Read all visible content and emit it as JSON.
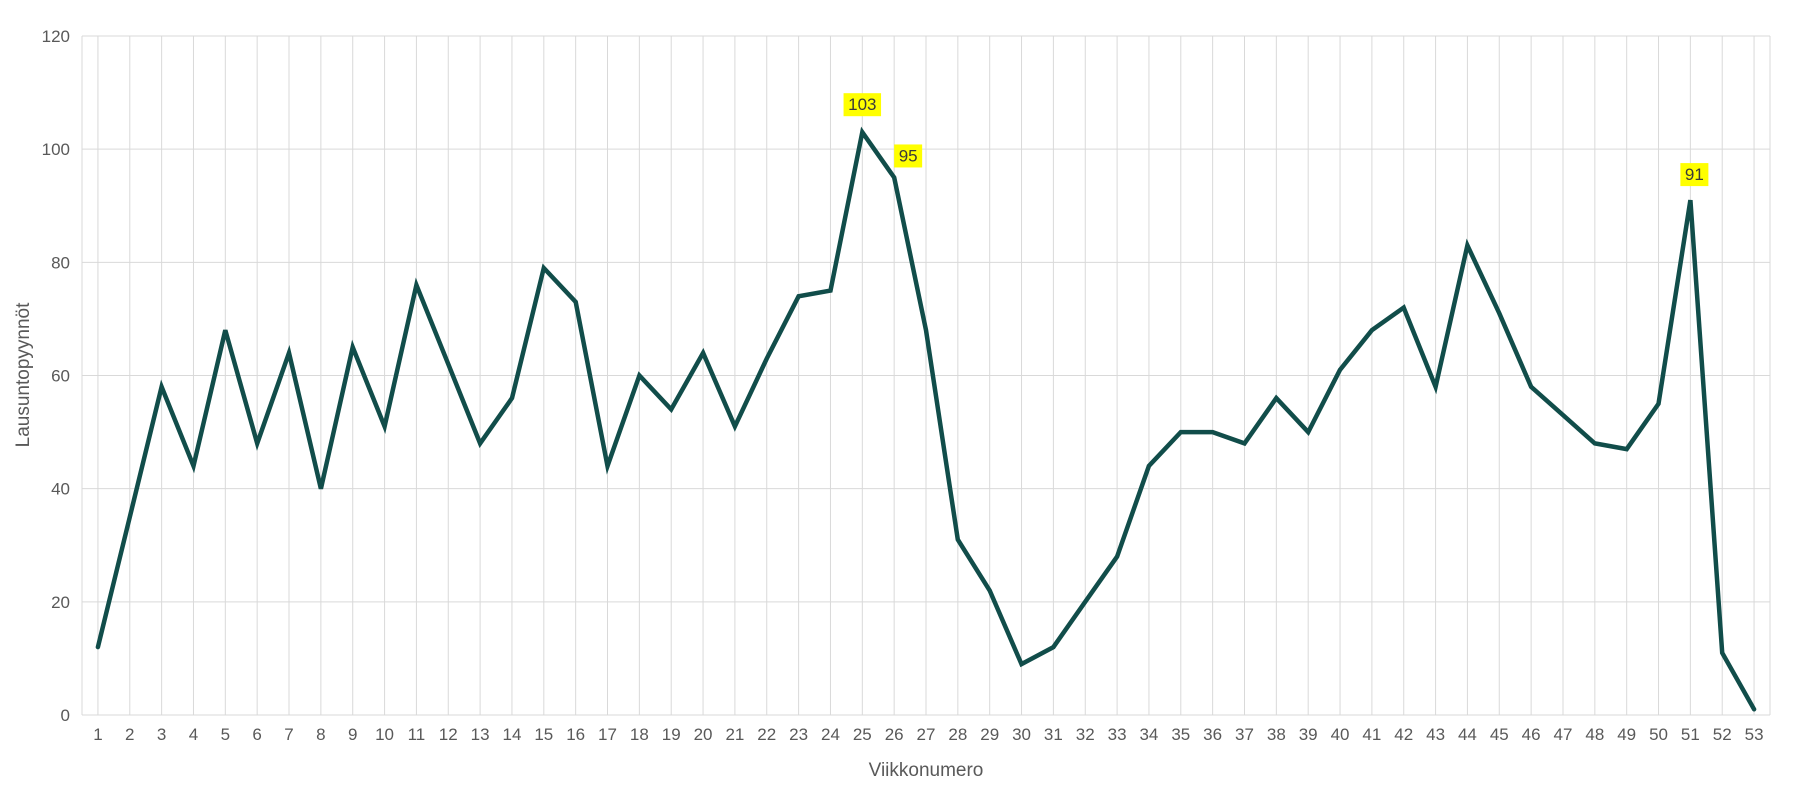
{
  "chart": {
    "y_axis_title": "Lausuntopyynnöt",
    "x_axis_title": "Viikkonumero",
    "colors": {
      "line": "#114d4a",
      "grid": "#d9d9d9",
      "tick_text": "#595959",
      "label_bg": "#ffff00",
      "label_text": "#3a3a3a"
    }
  },
  "chart_data": {
    "type": "line",
    "title": "",
    "xlabel": "Viikkonumero",
    "ylabel": "Lausuntopyynnöt",
    "x": [
      1,
      2,
      3,
      4,
      5,
      6,
      7,
      8,
      9,
      10,
      11,
      12,
      13,
      14,
      15,
      16,
      17,
      18,
      19,
      20,
      21,
      22,
      23,
      24,
      25,
      26,
      27,
      28,
      29,
      30,
      31,
      32,
      33,
      34,
      35,
      36,
      37,
      38,
      39,
      40,
      41,
      42,
      43,
      44,
      45,
      46,
      47,
      48,
      49,
      50,
      51,
      52,
      53
    ],
    "values": [
      12,
      35,
      58,
      44,
      68,
      48,
      64,
      40,
      65,
      51,
      76,
      62,
      48,
      56,
      79,
      73,
      44,
      60,
      54,
      64,
      51,
      63,
      74,
      75,
      103,
      95,
      68,
      31,
      22,
      9,
      12,
      20,
      28,
      44,
      50,
      50,
      48,
      56,
      50,
      61,
      68,
      72,
      58,
      83,
      71,
      58,
      53,
      48,
      47,
      55,
      91,
      11,
      1
    ],
    "y_ticks": [
      0,
      20,
      40,
      60,
      80,
      100,
      120
    ],
    "ylim": [
      0,
      120
    ],
    "grid": true,
    "legend": "none",
    "data_labels": [
      {
        "week": 25,
        "text": "103"
      },
      {
        "week": 26,
        "text": "95"
      },
      {
        "week": 51,
        "text": "91"
      }
    ]
  }
}
